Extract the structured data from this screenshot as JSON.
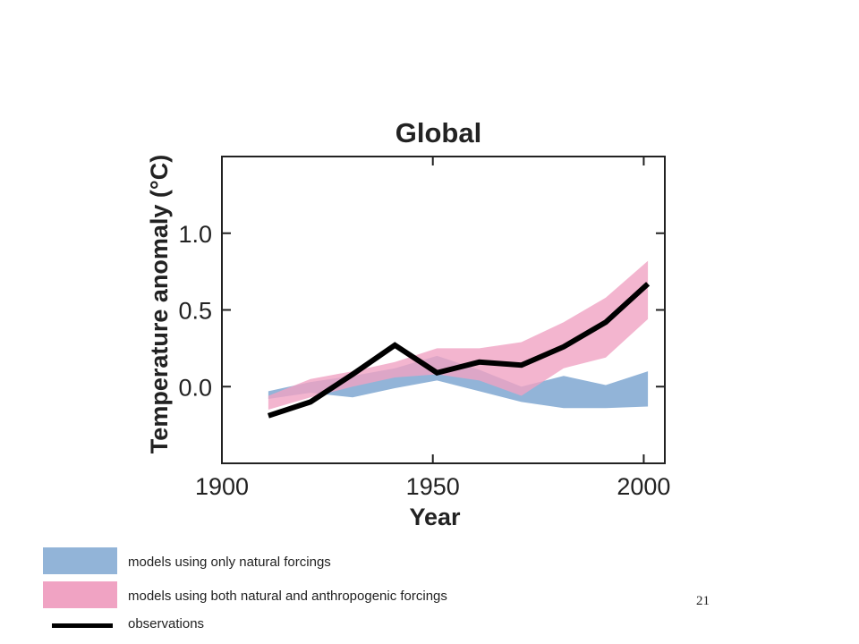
{
  "chart_data": {
    "type": "area",
    "title": "Global",
    "xlabel": "Year",
    "ylabel": "Temperature anomaly (°C)",
    "xlim": [
      1900,
      2005
    ],
    "ylim": [
      -0.5,
      1.5
    ],
    "xticks": [
      1900,
      1950,
      2000
    ],
    "yticks": [
      0.0,
      0.5,
      1.0
    ],
    "x_tick_labels": [
      "1900",
      "1950",
      "2000"
    ],
    "y_tick_labels": [
      "0.0",
      "0.5",
      "1.0"
    ],
    "grid": false,
    "legend_position": "bottom",
    "x": [
      1911,
      1921,
      1931,
      1941,
      1951,
      1961,
      1971,
      1981,
      1991,
      2001
    ],
    "series": [
      {
        "name": "models using only natural forcings",
        "kind": "band",
        "color": "#92b4d8",
        "lower": [
          -0.08,
          -0.04,
          -0.07,
          -0.01,
          0.04,
          -0.03,
          -0.1,
          -0.14,
          -0.14,
          -0.13
        ],
        "upper": [
          -0.03,
          0.03,
          0.07,
          0.12,
          0.2,
          0.11,
          0.0,
          0.07,
          0.01,
          0.1
        ]
      },
      {
        "name": "models using both natural and anthropogenic forcings",
        "kind": "band",
        "color": "#f0a3c3",
        "lower": [
          -0.15,
          -0.07,
          0.0,
          0.06,
          0.08,
          0.04,
          -0.06,
          0.12,
          0.19,
          0.44
        ],
        "upper": [
          -0.06,
          0.05,
          0.1,
          0.16,
          0.25,
          0.25,
          0.29,
          0.42,
          0.58,
          0.82
        ]
      },
      {
        "name": "observations",
        "kind": "line",
        "color": "#000000",
        "values": [
          -0.19,
          -0.1,
          0.08,
          0.27,
          0.09,
          0.16,
          0.14,
          0.26,
          0.42,
          0.67
        ]
      }
    ]
  },
  "page_number": "21"
}
